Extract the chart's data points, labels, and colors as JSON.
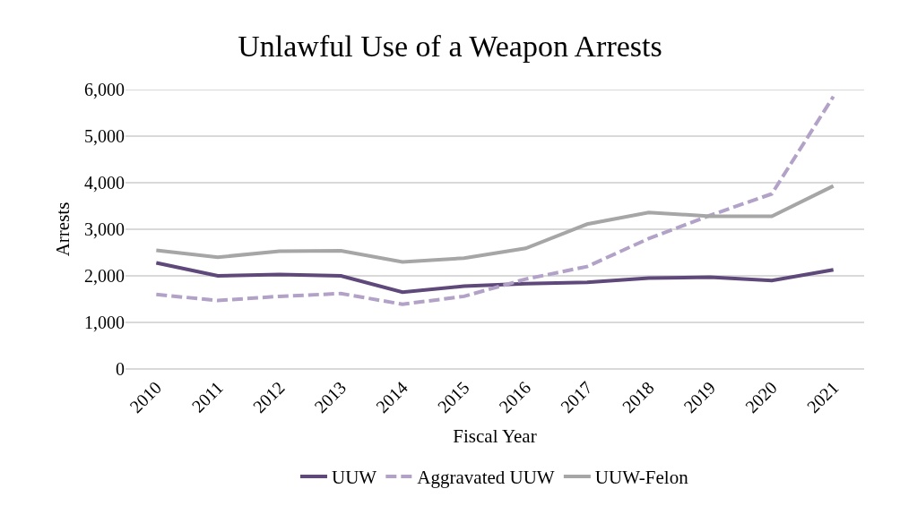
{
  "chart_data": {
    "type": "line",
    "title": "Unlawful Use of a Weapon Arrests",
    "xlabel": "Fiscal Year",
    "ylabel": "Arrests",
    "categories": [
      "2010",
      "2011",
      "2012",
      "2013",
      "2014",
      "2015",
      "2016",
      "2017",
      "2018",
      "2019",
      "2020",
      "2021"
    ],
    "series": [
      {
        "name": "UUW",
        "color": "#5f497a",
        "line_style": "solid",
        "values": [
          2280,
          2000,
          2030,
          2000,
          1650,
          1780,
          1830,
          1860,
          1950,
          1970,
          1900,
          2130
        ]
      },
      {
        "name": "Aggravated UUW",
        "color": "#b3a2c7",
        "line_style": "dashed",
        "values": [
          1600,
          1470,
          1560,
          1620,
          1390,
          1560,
          1930,
          2200,
          2800,
          3300,
          3760,
          5850
        ]
      },
      {
        "name": "UUW-Felon",
        "color": "#a6a6a6",
        "line_style": "solid",
        "values": [
          2550,
          2400,
          2530,
          2540,
          2300,
          2380,
          2590,
          3110,
          3360,
          3280,
          3280,
          3930
        ]
      }
    ],
    "ylim": [
      0,
      6000
    ],
    "yticks": [
      {
        "value": 0,
        "label": "0"
      },
      {
        "value": 1000,
        "label": "1,000"
      },
      {
        "value": 2000,
        "label": "2,000"
      },
      {
        "value": 3000,
        "label": "3,000"
      },
      {
        "value": 4000,
        "label": "4,000"
      },
      {
        "value": 5000,
        "label": "5,000"
      },
      {
        "value": 6000,
        "label": "6,000"
      }
    ],
    "grid": "y",
    "legend": "bottom",
    "marker": "none"
  }
}
